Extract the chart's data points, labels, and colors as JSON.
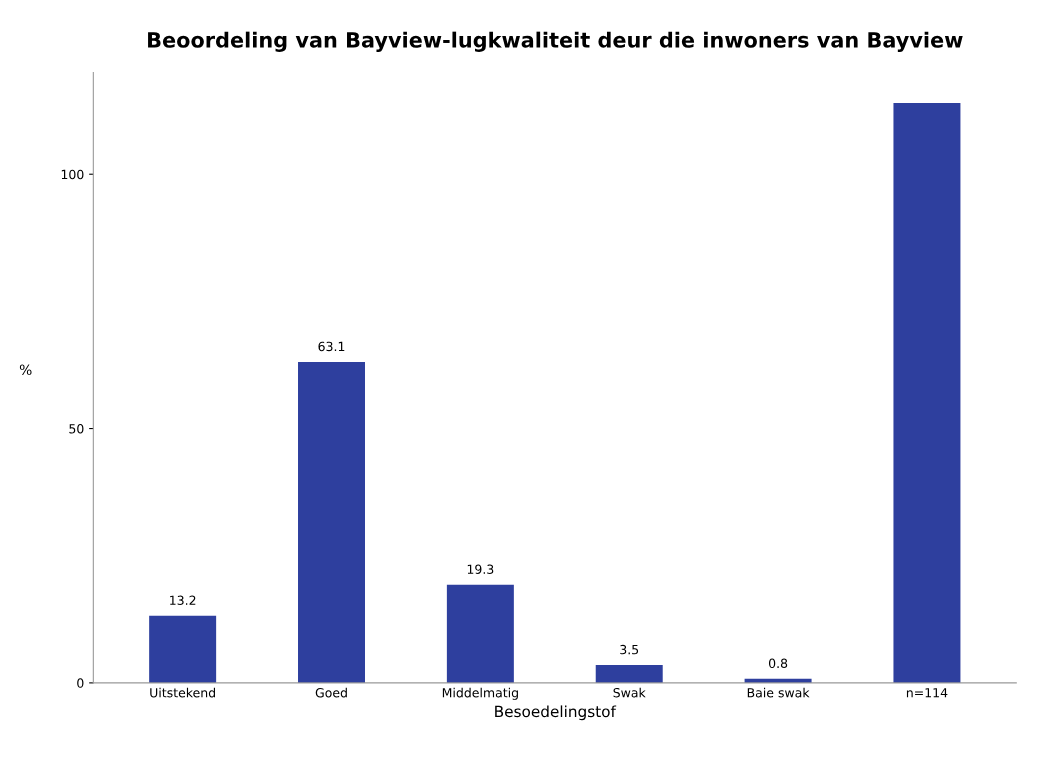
{
  "chart_data": {
    "type": "bar",
    "title": "Beoordeling van Bayview-lugkwaliteit deur die inwoners van Bayview",
    "xlabel": "Besoedelingstof",
    "ylabel": "%",
    "categories": [
      "Uitstekend",
      "Goed",
      "Middelmatig",
      "Swak",
      "Baie swak",
      "n=114"
    ],
    "values": [
      13.2,
      63.1,
      19.3,
      3.5,
      0.8,
      114
    ],
    "value_labels": [
      "13.2",
      "63.1",
      "19.3",
      "3.5",
      "0.8",
      null
    ],
    "color": "#2e3f9e",
    "ylim": [
      0,
      120
    ],
    "yticks": [
      0,
      50,
      100
    ],
    "grid": false
  }
}
